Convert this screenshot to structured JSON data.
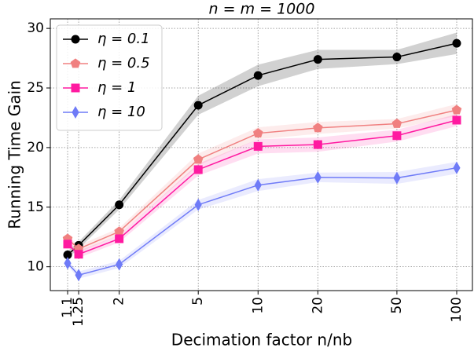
{
  "chart_data": {
    "type": "line",
    "title": "n = m = 1000",
    "x_label": "Decimation factor n/nb",
    "y_label": "Running Time Gain",
    "x": [
      1.1,
      1.25,
      2,
      5,
      10,
      20,
      50,
      100
    ],
    "xscale": "log",
    "xlim": [
      0.9,
      120
    ],
    "xticks": [
      1.1,
      1.25,
      2,
      5,
      10,
      20,
      50,
      100
    ],
    "ylim": [
      8,
      30.8
    ],
    "yticks": [
      10,
      15,
      20,
      25,
      30
    ],
    "grid": true,
    "legend": "upper left",
    "series": [
      {
        "name": "η = 0.1",
        "color": "#000000",
        "marker": "circle",
        "values": [
          11.0,
          11.8,
          15.2,
          23.55,
          26.05,
          27.4,
          27.6,
          28.75
        ],
        "error": [
          0.3,
          0.3,
          0.4,
          0.8,
          0.9,
          0.8,
          0.6,
          0.9
        ]
      },
      {
        "name": "η = 0.5",
        "color": "#f08080",
        "marker": "pentagon",
        "values": [
          12.35,
          11.5,
          12.95,
          19.0,
          21.2,
          21.65,
          22.0,
          23.15
        ],
        "error": [
          0.2,
          0.3,
          0.3,
          0.5,
          0.5,
          0.5,
          0.4,
          0.5
        ]
      },
      {
        "name": "η = 1",
        "color": "#ff1aa0",
        "marker": "square",
        "values": [
          11.9,
          11.05,
          12.35,
          18.15,
          20.1,
          20.25,
          21.0,
          22.3
        ],
        "error": [
          0.2,
          0.3,
          0.3,
          0.5,
          0.6,
          0.6,
          0.5,
          0.5
        ]
      },
      {
        "name": "η = 10",
        "color": "#6f7bf7",
        "marker": "diamond",
        "values": [
          10.3,
          9.3,
          10.2,
          15.2,
          16.85,
          17.5,
          17.45,
          18.3
        ],
        "error": [
          0.2,
          0.3,
          0.3,
          0.4,
          0.5,
          0.4,
          0.5,
          0.5
        ]
      }
    ]
  }
}
